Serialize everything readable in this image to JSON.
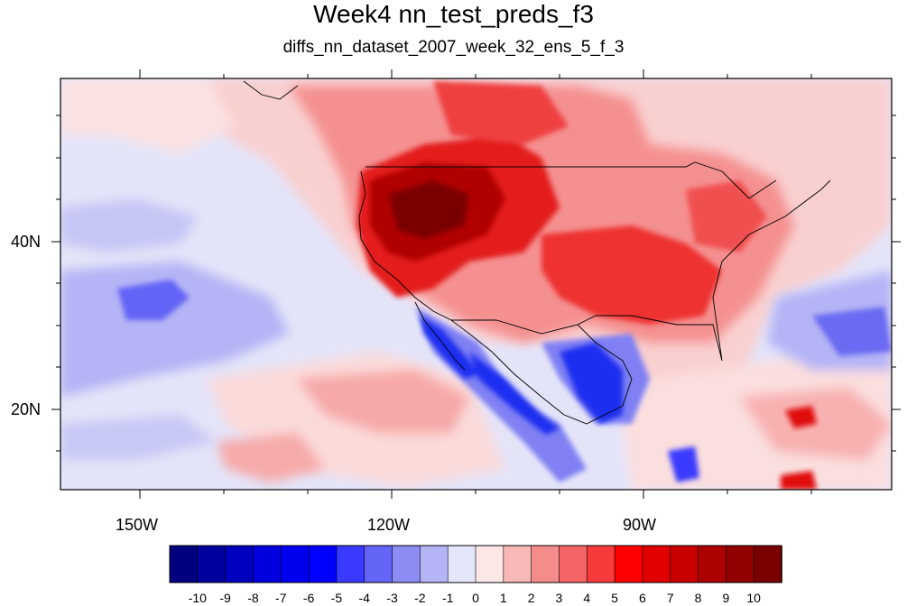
{
  "title": "Week4 nn_test_preds_f3",
  "subtitle": "diffs_nn_dataset_2007_week_32_ens_5_f_3",
  "axes": {
    "lon_labels": [
      "150W",
      "120W",
      "90W"
    ],
    "lat_labels": [
      "40N",
      "20N"
    ]
  },
  "colorbar": {
    "labels": [
      "-10",
      "-9",
      "-8",
      "-7",
      "-6",
      "-5",
      "-4",
      "-3",
      "-2",
      "-1",
      "0",
      "1",
      "2",
      "3",
      "4",
      "5",
      "6",
      "7",
      "8",
      "9",
      "10"
    ],
    "colors": [
      "#000080",
      "#00009f",
      "#0000bf",
      "#0000df",
      "#0000f0",
      "#0000ff",
      "#3a3aff",
      "#6464f7",
      "#8c8cf4",
      "#b4b4f6",
      "#e6e6fa",
      "#fde6e6",
      "#f8b8b8",
      "#f58c8c",
      "#f46464",
      "#f43a3a",
      "#ff0000",
      "#e00000",
      "#c80000",
      "#ad0000",
      "#920000",
      "#7a0000"
    ]
  },
  "map": {
    "background": "#e4e4f9",
    "accent_warm": "#d80000",
    "accent_cold": "#1b2df0"
  }
}
